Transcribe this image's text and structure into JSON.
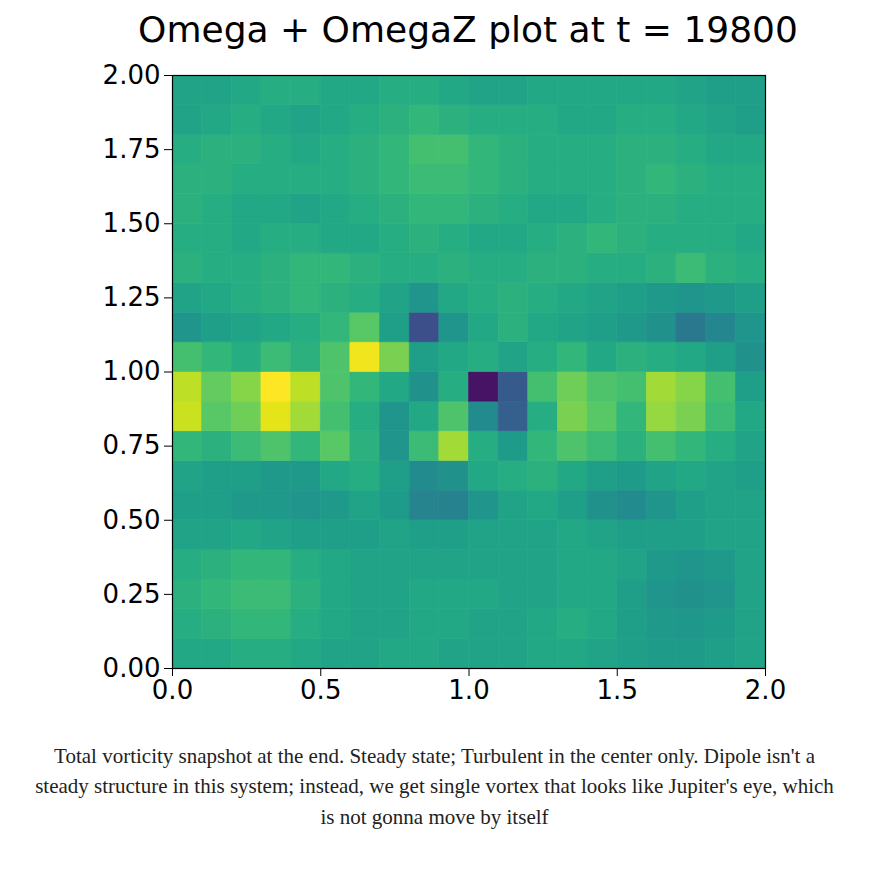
{
  "chart_data": {
    "type": "heatmap",
    "title": "Omega + OmegaZ plot at t = 19800",
    "caption": "Total vorticity snapshot at the end. Steady state; Turbulent in the center only. Dipole isn't a steady structure in this system; instead, we get single vortex that looks like Jupiter's eye, which is not gonna move by itself",
    "xlim": [
      0,
      2
    ],
    "ylim": [
      0,
      2
    ],
    "xticks": [
      {
        "value": 0,
        "label": "0.0"
      },
      0.5,
      {
        "value": 1,
        "label": "1.0"
      },
      1.5,
      {
        "value": 2,
        "label": "2.0"
      }
    ],
    "yticks": [
      {
        "value": 0,
        "label": "0.00"
      },
      0.25,
      {
        "value": 0.5,
        "label": "0.50"
      },
      0.75,
      {
        "value": 1,
        "label": "1.00"
      },
      1.25,
      {
        "value": 1.5,
        "label": "1.50"
      },
      1.75,
      {
        "value": 2,
        "label": "2.00"
      }
    ],
    "color_range": [
      0,
      1
    ],
    "cells": [
      [
        0.6,
        0.6,
        0.62,
        0.62,
        0.6,
        0.58,
        0.58,
        0.6,
        0.6,
        0.58,
        0.58,
        0.58,
        0.6,
        0.6,
        0.58,
        0.56,
        0.55,
        0.55,
        0.56,
        0.58
      ],
      [
        0.62,
        0.64,
        0.66,
        0.66,
        0.62,
        0.6,
        0.58,
        0.58,
        0.6,
        0.6,
        0.58,
        0.58,
        0.6,
        0.62,
        0.6,
        0.56,
        0.54,
        0.53,
        0.55,
        0.58
      ],
      [
        0.64,
        0.66,
        0.68,
        0.68,
        0.64,
        0.6,
        0.58,
        0.58,
        0.6,
        0.6,
        0.6,
        0.58,
        0.58,
        0.6,
        0.6,
        0.56,
        0.52,
        0.5,
        0.52,
        0.58
      ],
      [
        0.62,
        0.64,
        0.66,
        0.66,
        0.62,
        0.6,
        0.58,
        0.58,
        0.58,
        0.58,
        0.58,
        0.58,
        0.58,
        0.6,
        0.6,
        0.58,
        0.54,
        0.52,
        0.54,
        0.58
      ],
      [
        0.58,
        0.58,
        0.6,
        0.58,
        0.56,
        0.56,
        0.56,
        0.58,
        0.56,
        0.56,
        0.58,
        0.58,
        0.58,
        0.6,
        0.58,
        0.56,
        0.56,
        0.56,
        0.58,
        0.58
      ],
      [
        0.56,
        0.56,
        0.54,
        0.54,
        0.52,
        0.54,
        0.58,
        0.55,
        0.45,
        0.44,
        0.52,
        0.58,
        0.6,
        0.56,
        0.5,
        0.48,
        0.52,
        0.56,
        0.58,
        0.58
      ],
      [
        0.58,
        0.56,
        0.56,
        0.54,
        0.54,
        0.6,
        0.62,
        0.56,
        0.48,
        0.5,
        0.6,
        0.62,
        0.64,
        0.6,
        0.56,
        0.55,
        0.58,
        0.6,
        0.58,
        0.56
      ],
      [
        0.66,
        0.64,
        0.68,
        0.72,
        0.66,
        0.74,
        0.64,
        0.52,
        0.68,
        0.86,
        0.62,
        0.55,
        0.66,
        0.72,
        0.68,
        0.64,
        0.7,
        0.66,
        0.62,
        0.58
      ],
      [
        0.92,
        0.74,
        0.78,
        0.96,
        0.86,
        0.7,
        0.62,
        0.52,
        0.6,
        0.72,
        0.48,
        0.3,
        0.62,
        0.8,
        0.74,
        0.66,
        0.84,
        0.8,
        0.68,
        0.6
      ],
      [
        0.9,
        0.76,
        0.82,
        1.0,
        0.9,
        0.72,
        0.66,
        0.6,
        0.5,
        0.62,
        0.05,
        0.28,
        0.7,
        0.78,
        0.72,
        0.7,
        0.86,
        0.82,
        0.7,
        0.56
      ],
      [
        0.7,
        0.66,
        0.62,
        0.68,
        0.64,
        0.72,
        0.98,
        0.8,
        0.56,
        0.6,
        0.62,
        0.58,
        0.62,
        0.66,
        0.6,
        0.64,
        0.62,
        0.6,
        0.56,
        0.5
      ],
      [
        0.52,
        0.56,
        0.58,
        0.6,
        0.62,
        0.66,
        0.74,
        0.56,
        0.24,
        0.52,
        0.6,
        0.64,
        0.6,
        0.58,
        0.56,
        0.54,
        0.5,
        0.4,
        0.46,
        0.52
      ],
      [
        0.58,
        0.6,
        0.62,
        0.64,
        0.66,
        0.64,
        0.62,
        0.58,
        0.52,
        0.6,
        0.62,
        0.64,
        0.62,
        0.6,
        0.58,
        0.56,
        0.54,
        0.52,
        0.54,
        0.56
      ],
      [
        0.64,
        0.62,
        0.62,
        0.64,
        0.66,
        0.66,
        0.64,
        0.62,
        0.62,
        0.64,
        0.62,
        0.62,
        0.64,
        0.64,
        0.62,
        0.62,
        0.64,
        0.68,
        0.64,
        0.62
      ],
      [
        0.62,
        0.62,
        0.6,
        0.62,
        0.62,
        0.6,
        0.6,
        0.62,
        0.64,
        0.62,
        0.6,
        0.6,
        0.62,
        0.64,
        0.66,
        0.64,
        0.62,
        0.62,
        0.62,
        0.6
      ],
      [
        0.64,
        0.62,
        0.6,
        0.6,
        0.58,
        0.6,
        0.62,
        0.64,
        0.66,
        0.66,
        0.64,
        0.62,
        0.6,
        0.6,
        0.62,
        0.64,
        0.64,
        0.62,
        0.62,
        0.62
      ],
      [
        0.64,
        0.64,
        0.62,
        0.62,
        0.62,
        0.62,
        0.64,
        0.66,
        0.68,
        0.68,
        0.66,
        0.64,
        0.62,
        0.62,
        0.62,
        0.64,
        0.66,
        0.64,
        0.62,
        0.62
      ],
      [
        0.62,
        0.64,
        0.64,
        0.62,
        0.6,
        0.62,
        0.64,
        0.66,
        0.7,
        0.7,
        0.66,
        0.64,
        0.62,
        0.62,
        0.62,
        0.64,
        0.64,
        0.62,
        0.6,
        0.6
      ],
      [
        0.58,
        0.6,
        0.62,
        0.6,
        0.58,
        0.6,
        0.62,
        0.64,
        0.66,
        0.64,
        0.62,
        0.62,
        0.62,
        0.6,
        0.6,
        0.62,
        0.62,
        0.6,
        0.58,
        0.56
      ],
      [
        0.58,
        0.58,
        0.6,
        0.62,
        0.62,
        0.6,
        0.6,
        0.62,
        0.62,
        0.6,
        0.58,
        0.58,
        0.6,
        0.6,
        0.6,
        0.6,
        0.6,
        0.58,
        0.56,
        0.56
      ]
    ]
  }
}
